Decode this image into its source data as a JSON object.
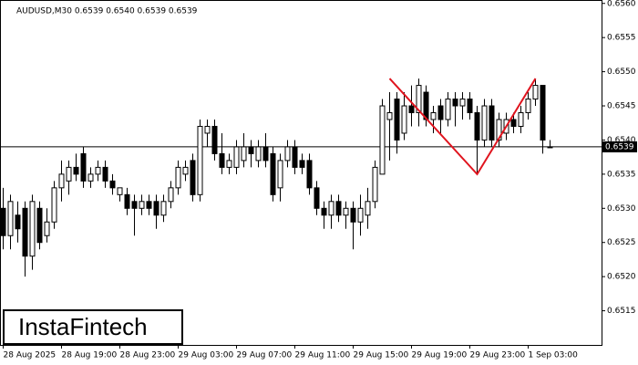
{
  "chart_data": {
    "type": "candlestick",
    "title": "AUDUSD,M30  0.6539 0.6540 0.6539 0.6539",
    "brand": "InstaFintech",
    "categories": [
      "28 Aug 2025",
      null,
      null,
      null,
      null,
      null,
      null,
      null,
      "28 Aug 19:00",
      null,
      null,
      null,
      null,
      null,
      null,
      null,
      "28 Aug 23:00",
      null,
      null,
      null,
      null,
      null,
      null,
      null,
      "29 Aug 03:00",
      null,
      null,
      null,
      null,
      null,
      null,
      null,
      "29 Aug 07:00",
      null,
      null,
      null,
      null,
      null,
      null,
      null,
      "29 Aug 11:00",
      null,
      null,
      null,
      null,
      null,
      null,
      null,
      "29 Aug 15:00",
      null,
      null,
      null,
      null,
      null,
      null,
      null,
      "29 Aug 19:00",
      null,
      null,
      null,
      null,
      null,
      null,
      null,
      "29 Aug 23:00",
      null,
      null,
      null,
      null,
      null,
      null,
      null,
      "1 Sep 03:00",
      null,
      null,
      null
    ],
    "open": [
      0.653,
      0.6526,
      0.6529,
      0.653,
      0.6523,
      0.653,
      0.6526,
      0.6528,
      0.6533,
      0.6534,
      0.6536,
      0.6538,
      0.6534,
      0.6535,
      0.6536,
      0.6534,
      0.6532,
      0.6532,
      0.6531,
      0.653,
      0.6531,
      0.6531,
      0.6529,
      0.6531,
      0.6533,
      0.6535,
      0.6537,
      0.6532,
      0.6541,
      0.6542,
      0.6538,
      0.6536,
      0.6536,
      0.6537,
      0.6539,
      0.6537,
      0.6539,
      0.6538,
      0.6533,
      0.6537,
      0.6539,
      0.6537,
      0.6537,
      0.6533,
      0.653,
      0.6529,
      0.6531,
      0.6529,
      0.653,
      0.6528,
      0.6529,
      0.6531,
      0.6535,
      0.6543,
      0.6546,
      0.6541,
      0.6545,
      0.6544,
      0.6547,
      0.6543,
      0.6545,
      0.6543,
      0.6546,
      0.6545,
      0.6546,
      0.6544,
      0.654,
      0.6545,
      0.654,
      0.6541,
      0.6543,
      0.6542,
      0.6544,
      0.6546,
      0.6548,
      0.6539
    ],
    "high": [
      0.6533,
      0.6532,
      0.6531,
      0.6531,
      0.6532,
      0.6531,
      0.653,
      0.6534,
      0.6537,
      0.6537,
      0.6538,
      0.6539,
      0.6536,
      0.6537,
      0.6537,
      0.6535,
      0.6533,
      0.6533,
      0.6532,
      0.6532,
      0.6532,
      0.6532,
      0.6532,
      0.6534,
      0.6537,
      0.6537,
      0.6538,
      0.6543,
      0.6543,
      0.6543,
      0.6541,
      0.6538,
      0.654,
      0.6541,
      0.654,
      0.654,
      0.6541,
      0.6539,
      0.6538,
      0.654,
      0.654,
      0.6538,
      0.6538,
      0.6534,
      0.6531,
      0.6532,
      0.6532,
      0.6531,
      0.6531,
      0.6532,
      0.6533,
      0.6537,
      0.6546,
      0.6547,
      0.6547,
      0.6547,
      0.6548,
      0.6549,
      0.6548,
      0.6545,
      0.6546,
      0.6547,
      0.6547,
      0.6547,
      0.6547,
      0.6545,
      0.6546,
      0.6546,
      0.6544,
      0.6544,
      0.6544,
      0.6545,
      0.6547,
      0.6549,
      0.6548,
      0.654
    ],
    "low": [
      0.6524,
      0.6524,
      0.6525,
      0.652,
      0.6521,
      0.6524,
      0.6525,
      0.6527,
      0.6531,
      0.6532,
      0.6534,
      0.6533,
      0.6533,
      0.6534,
      0.6533,
      0.6532,
      0.6531,
      0.6529,
      0.6526,
      0.6529,
      0.6529,
      0.6527,
      0.6528,
      0.653,
      0.6532,
      0.6534,
      0.6531,
      0.6531,
      0.6539,
      0.6537,
      0.6535,
      0.6535,
      0.6535,
      0.6536,
      0.6536,
      0.6536,
      0.6536,
      0.6531,
      0.6531,
      0.6536,
      0.6535,
      0.6535,
      0.6532,
      0.6529,
      0.6527,
      0.6527,
      0.6528,
      0.6527,
      0.6524,
      0.6526,
      0.6527,
      0.653,
      0.6535,
      0.6537,
      0.6538,
      0.654,
      0.6542,
      0.6542,
      0.6542,
      0.6541,
      0.6541,
      0.6542,
      0.6542,
      0.6543,
      0.6543,
      0.6535,
      0.6539,
      0.6539,
      0.6539,
      0.654,
      0.6541,
      0.6541,
      0.6543,
      0.6545,
      0.6538,
      0.6539
    ],
    "close": [
      0.6526,
      0.6531,
      0.6527,
      0.6523,
      0.6531,
      0.6525,
      0.6528,
      0.6533,
      0.6535,
      0.6536,
      0.6535,
      0.6534,
      0.6535,
      0.6536,
      0.6534,
      0.6533,
      0.6533,
      0.653,
      0.653,
      0.6531,
      0.653,
      0.6529,
      0.6531,
      0.6533,
      0.6536,
      0.6536,
      0.6532,
      0.6542,
      0.6542,
      0.6538,
      0.6536,
      0.6537,
      0.6539,
      0.6539,
      0.6538,
      0.6539,
      0.6537,
      0.6532,
      0.6537,
      0.6539,
      0.6536,
      0.6536,
      0.6533,
      0.653,
      0.6529,
      0.6531,
      0.6529,
      0.653,
      0.6528,
      0.653,
      0.6531,
      0.6536,
      0.6545,
      0.6544,
      0.654,
      0.6545,
      0.6544,
      0.6548,
      0.6543,
      0.6544,
      0.6543,
      0.6546,
      0.6545,
      0.6546,
      0.6544,
      0.654,
      0.6545,
      0.654,
      0.6543,
      0.6543,
      0.6542,
      0.6544,
      0.6546,
      0.6548,
      0.654,
      0.6539
    ],
    "up_color": "#ffffff",
    "down_color": "#000000",
    "wick_color": "#000000",
    "last_price": 0.6539,
    "pattern": {
      "x": [
        53,
        65,
        73
      ],
      "y": [
        0.6549,
        0.6535,
        0.6549
      ],
      "color": "#e0141e"
    },
    "ylim": [
      0.651,
      0.65605
    ],
    "yticks": [
      0.6515,
      {
        "value": 0.652,
        "label": "0.6520"
      },
      0.6525,
      {
        "value": 0.653,
        "label": "0.6530"
      },
      0.6535,
      {
        "value": 0.654,
        "label": "0.6540"
      },
      0.6545,
      {
        "value": 0.655,
        "label": "0.6550"
      },
      0.6555,
      {
        "value": 0.656,
        "label": "0.6560"
      }
    ]
  }
}
